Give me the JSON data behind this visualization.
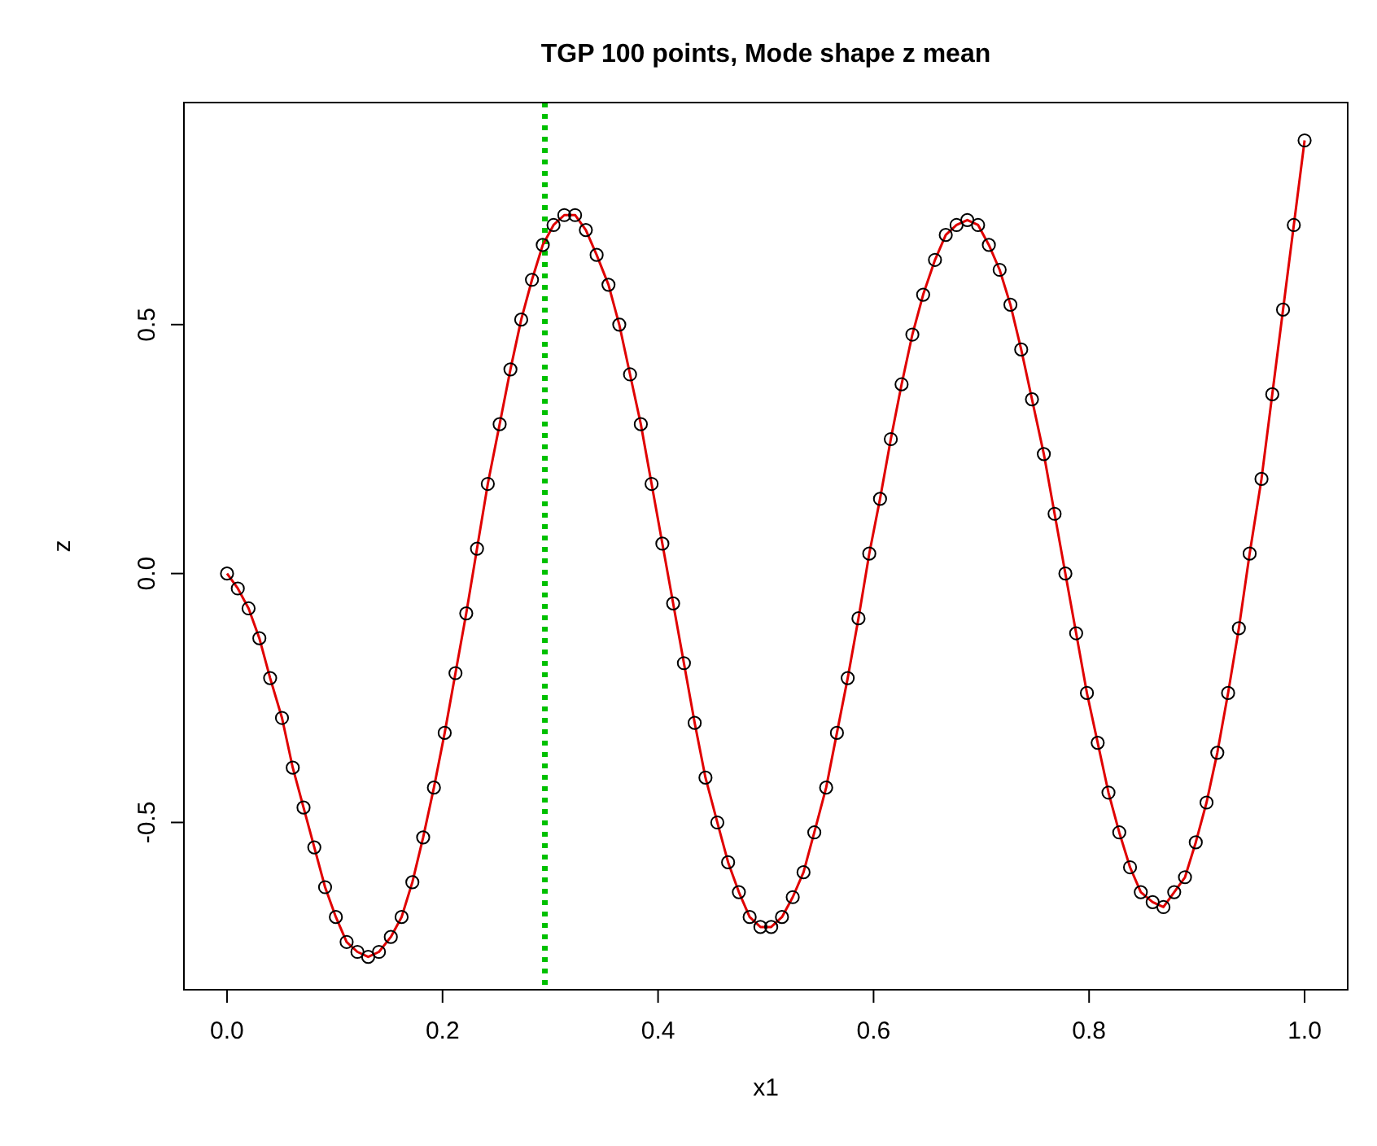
{
  "chart_data": {
    "type": "scatter",
    "title": "TGP 100 points, Mode shape z mean",
    "xlabel": "x1",
    "ylabel": "z",
    "x": [
      0,
      0.01,
      0.02,
      0.03,
      0.04,
      0.051,
      0.061,
      0.071,
      0.081,
      0.091,
      0.101,
      0.111,
      0.121,
      0.131,
      0.141,
      0.152,
      0.162,
      0.172,
      0.182,
      0.192,
      0.202,
      0.212,
      0.222,
      0.232,
      0.242,
      0.253,
      0.263,
      0.273,
      0.283,
      0.293,
      0.303,
      0.313,
      0.323,
      0.333,
      0.343,
      0.354,
      0.364,
      0.374,
      0.384,
      0.394,
      0.404,
      0.414,
      0.424,
      0.434,
      0.444,
      0.455,
      0.465,
      0.475,
      0.485,
      0.495,
      0.505,
      0.515,
      0.525,
      0.535,
      0.545,
      0.556,
      0.566,
      0.576,
      0.586,
      0.596,
      0.606,
      0.616,
      0.626,
      0.636,
      0.646,
      0.657,
      0.667,
      0.677,
      0.687,
      0.697,
      0.707,
      0.717,
      0.727,
      0.737,
      0.747,
      0.758,
      0.768,
      0.778,
      0.788,
      0.798,
      0.808,
      0.818,
      0.828,
      0.838,
      0.848,
      0.859,
      0.869,
      0.879,
      0.889,
      0.899,
      0.909,
      0.919,
      0.929,
      0.939,
      0.949,
      0.96,
      0.97,
      0.98,
      0.99,
      1.0
    ],
    "series": [
      {
        "type": "line",
        "color": "#e00000",
        "line_style": "solid",
        "marker": "none",
        "values": [
          0,
          -0.03,
          -0.07,
          -0.13,
          -0.21,
          -0.29,
          -0.39,
          -0.47,
          -0.55,
          -0.63,
          -0.69,
          -0.74,
          -0.76,
          -0.77,
          -0.76,
          -0.73,
          -0.69,
          -0.62,
          -0.53,
          -0.43,
          -0.32,
          -0.2,
          -0.08,
          0.05,
          0.18,
          0.3,
          0.41,
          0.51,
          0.59,
          0.66,
          0.7,
          0.72,
          0.72,
          0.69,
          0.64,
          0.58,
          0.5,
          0.4,
          0.3,
          0.18,
          0.06,
          -0.06,
          -0.18,
          -0.3,
          -0.41,
          -0.5,
          -0.58,
          -0.64,
          -0.69,
          -0.71,
          -0.71,
          -0.69,
          -0.65,
          -0.6,
          -0.52,
          -0.43,
          -0.32,
          -0.21,
          -0.09,
          0.04,
          0.15,
          0.27,
          0.38,
          0.48,
          0.56,
          0.63,
          0.68,
          0.7,
          0.71,
          0.7,
          0.66,
          0.61,
          0.54,
          0.45,
          0.35,
          0.24,
          0.12,
          0.0,
          -0.12,
          -0.24,
          -0.34,
          -0.44,
          -0.52,
          -0.59,
          -0.64,
          -0.66,
          -0.67,
          -0.64,
          -0.61,
          -0.54,
          -0.46,
          -0.36,
          -0.24,
          -0.11,
          0.04,
          0.19,
          0.36,
          0.53,
          0.7,
          0.87
        ]
      },
      {
        "color": "#000000",
        "marker": "circle",
        "values": [
          0,
          -0.03,
          -0.07,
          -0.13,
          -0.21,
          -0.29,
          -0.39,
          -0.47,
          -0.55,
          -0.63,
          -0.69,
          -0.74,
          -0.76,
          -0.77,
          -0.76,
          -0.73,
          -0.69,
          -0.62,
          -0.53,
          -0.43,
          -0.32,
          -0.2,
          -0.08,
          0.05,
          0.18,
          0.3,
          0.41,
          0.51,
          0.59,
          0.66,
          0.7,
          0.72,
          0.72,
          0.69,
          0.64,
          0.58,
          0.5,
          0.4,
          0.3,
          0.18,
          0.06,
          -0.06,
          -0.18,
          -0.3,
          -0.41,
          -0.5,
          -0.58,
          -0.64,
          -0.69,
          -0.71,
          -0.71,
          -0.69,
          -0.65,
          -0.6,
          -0.52,
          -0.43,
          -0.32,
          -0.21,
          -0.09,
          0.04,
          0.15,
          0.27,
          0.38,
          0.48,
          0.56,
          0.63,
          0.68,
          0.7,
          0.71,
          0.7,
          0.66,
          0.61,
          0.54,
          0.45,
          0.35,
          0.24,
          0.12,
          0.0,
          -0.12,
          -0.24,
          -0.34,
          -0.44,
          -0.52,
          -0.59,
          -0.64,
          -0.66,
          -0.67,
          -0.64,
          -0.61,
          -0.54,
          -0.46,
          -0.36,
          -0.24,
          -0.11,
          0.04,
          0.19,
          0.36,
          0.53,
          0.7,
          0.87
        ]
      }
    ],
    "xlim": [
      -0.04,
      1.04
    ],
    "ylim": [
      -0.836,
      0.946
    ],
    "xticks": [
      {
        "value": 0,
        "label": "0.0"
      },
      0.2,
      0.4,
      0.6,
      0.8,
      {
        "value": 1,
        "label": "1.0"
      }
    ],
    "yticks": [
      -0.5,
      {
        "value": 0,
        "label": "0.0"
      },
      0.5
    ],
    "ref_lines": [
      {
        "axis": "x",
        "value": 0.295,
        "color": "#00c000",
        "line_style": "dotted"
      }
    ]
  }
}
